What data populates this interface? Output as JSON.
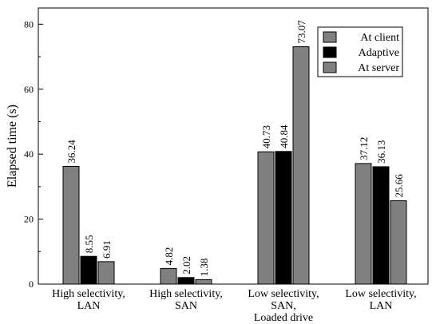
{
  "chart_data": {
    "type": "bar",
    "title": "",
    "xlabel": "",
    "ylabel": "Elapsed time (s)",
    "ylim": [
      0,
      85
    ],
    "yticks": [
      "0",
      "20",
      "40",
      "60",
      "80"
    ],
    "grid": false,
    "legend_position": "top-right",
    "categories": [
      [
        "High selectivity,",
        "LAN"
      ],
      [
        "High selectivity,",
        "SAN"
      ],
      [
        "Low selectivity,",
        "SAN,",
        "Loaded drive"
      ],
      [
        "Low selectivity,",
        "LAN"
      ]
    ],
    "series": [
      {
        "name": "At client",
        "color": "#808080",
        "values": [
          36.24,
          4.82,
          40.73,
          37.12
        ],
        "labels": [
          "36.24",
          "4.82",
          "40.73",
          "37.12"
        ]
      },
      {
        "name": "Adaptive",
        "color": "#000000",
        "values": [
          8.55,
          2.02,
          40.84,
          36.13
        ],
        "labels": [
          "8.55",
          "2.02",
          "40.84",
          "36.13"
        ]
      },
      {
        "name": "At server",
        "color": "#808080",
        "values": [
          6.91,
          1.38,
          73.07,
          25.66
        ],
        "labels": [
          "6.91",
          "1.38",
          "73.07",
          "25.66"
        ]
      }
    ]
  }
}
